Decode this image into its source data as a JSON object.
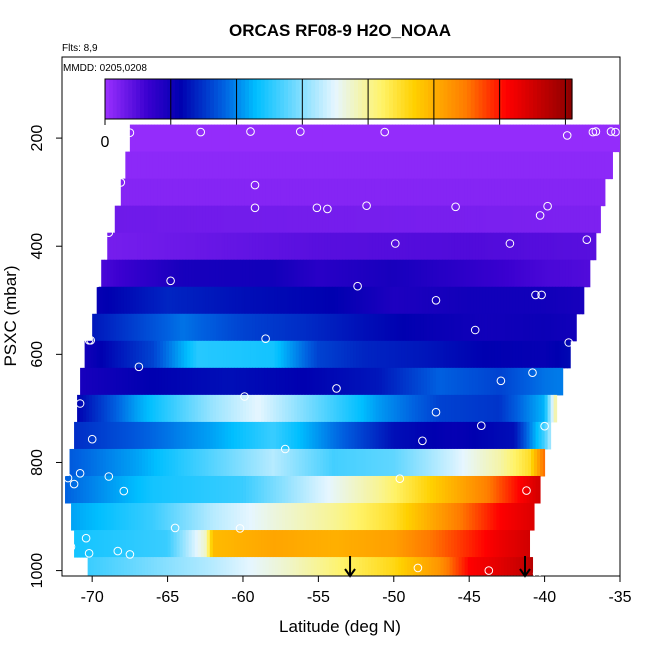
{
  "chart_data": {
    "type": "heatmap",
    "title": "ORCAS RF08-9 H2O_NOAA",
    "flights_label": "Flts: 8,9",
    "dates_label": "MMDD: 0205,0208",
    "xlabel": "Latitude (deg N)",
    "ylabel": "PSXC (mbar)",
    "xlim": [
      -72,
      -35
    ],
    "ylim": [
      1010,
      50
    ],
    "y_reversed": true,
    "x_ticks": [
      -70,
      -65,
      -60,
      -55,
      -50,
      -45,
      -40,
      -35
    ],
    "y_ticks": [
      200,
      400,
      600,
      800,
      1000
    ],
    "colorbar": {
      "range": [
        0,
        14200
      ],
      "ticks": [
        0,
        2000,
        4000,
        6000,
        8000,
        10000,
        12000,
        14000
      ],
      "stops": [
        {
          "v": 0,
          "c": "#9B30FF"
        },
        {
          "v": 1300,
          "c": "#3A00D0"
        },
        {
          "v": 2300,
          "c": "#0000B0"
        },
        {
          "v": 3600,
          "c": "#0060E0"
        },
        {
          "v": 4600,
          "c": "#00BFFF"
        },
        {
          "v": 7000,
          "c": "#E6F6FF"
        },
        {
          "v": 8400,
          "c": "#FFF36A"
        },
        {
          "v": 9400,
          "c": "#FFD000"
        },
        {
          "v": 11000,
          "c": "#FF7A00"
        },
        {
          "v": 12200,
          "c": "#FF0000"
        },
        {
          "v": 14200,
          "c": "#8B0000"
        }
      ]
    },
    "layers": [
      {
        "p_top": 175,
        "p_bot": 225,
        "lat_min": -67.5,
        "lat_max": -35.0,
        "profile": [
          [
            -67.5,
            100
          ],
          [
            -35,
            100
          ]
        ]
      },
      {
        "p_top": 225,
        "p_bot": 275,
        "lat_min": -67.8,
        "lat_max": -35.5,
        "profile": [
          [
            -67.8,
            200
          ],
          [
            -35.5,
            200
          ]
        ]
      },
      {
        "p_top": 275,
        "p_bot": 325,
        "lat_min": -68.1,
        "lat_max": -36.0,
        "profile": [
          [
            -68.1,
            300
          ],
          [
            -36,
            300
          ]
        ]
      },
      {
        "p_top": 325,
        "p_bot": 375,
        "lat_min": -68.5,
        "lat_max": -36.3,
        "profile": [
          [
            -68.5,
            600
          ],
          [
            -36.3,
            400
          ]
        ]
      },
      {
        "p_top": 375,
        "p_bot": 425,
        "lat_min": -69.0,
        "lat_max": -36.6,
        "profile": [
          [
            -69,
            500
          ],
          [
            -62,
            700
          ],
          [
            -55,
            900
          ],
          [
            -45,
            1000
          ],
          [
            -36.6,
            900
          ]
        ]
      },
      {
        "p_top": 425,
        "p_bot": 475,
        "lat_min": -69.4,
        "lat_max": -37.0,
        "profile": [
          [
            -69.4,
            1100
          ],
          [
            -64,
            1900
          ],
          [
            -58,
            2000
          ],
          [
            -55,
            1600
          ],
          [
            -50,
            1900
          ],
          [
            -45,
            1500
          ],
          [
            -40,
            1100
          ],
          [
            -37,
            1000
          ]
        ]
      },
      {
        "p_top": 475,
        "p_bot": 525,
        "lat_min": -69.7,
        "lat_max": -37.4,
        "profile": [
          [
            -69.7,
            2200
          ],
          [
            -65,
            2800
          ],
          [
            -60,
            2500
          ],
          [
            -54,
            2300
          ],
          [
            -50,
            1800
          ],
          [
            -45,
            2000
          ],
          [
            -40,
            2000
          ],
          [
            -37.4,
            1900
          ]
        ]
      },
      {
        "p_top": 525,
        "p_bot": 575,
        "lat_min": -70.0,
        "lat_max": -37.9,
        "profile": [
          [
            -70,
            2600
          ],
          [
            -64,
            3800
          ],
          [
            -60,
            3200
          ],
          [
            -56,
            2900
          ],
          [
            -52,
            2500
          ],
          [
            -48,
            2200
          ],
          [
            -44,
            2000
          ],
          [
            -40,
            2100
          ],
          [
            -37.9,
            2000
          ]
        ]
      },
      {
        "p_top": 575,
        "p_bot": 625,
        "lat_min": -70.5,
        "lat_max": -38.3,
        "profile": [
          [
            -70.5,
            2000
          ],
          [
            -66,
            3200
          ],
          [
            -63,
            5000
          ],
          [
            -58,
            4800
          ],
          [
            -55,
            3200
          ],
          [
            -52,
            2800
          ],
          [
            -48,
            2600
          ],
          [
            -44,
            2300
          ],
          [
            -40,
            2200
          ],
          [
            -38.3,
            2400
          ]
        ]
      },
      {
        "p_top": 625,
        "p_bot": 675,
        "lat_min": -70.8,
        "lat_max": -38.8,
        "profile": [
          [
            -70.8,
            1900
          ],
          [
            -66,
            2300
          ],
          [
            -61,
            2500
          ],
          [
            -56,
            2300
          ],
          [
            -51,
            2600
          ],
          [
            -47,
            3600
          ],
          [
            -43,
            3200
          ],
          [
            -40,
            3800
          ],
          [
            -38.8,
            3900
          ]
        ]
      },
      {
        "p_top": 675,
        "p_bot": 725,
        "lat_min": -71.0,
        "lat_max": -39.2,
        "profile": [
          [
            -71,
            2300
          ],
          [
            -67,
            4300
          ],
          [
            -62,
            6200
          ],
          [
            -59,
            7000
          ],
          [
            -55,
            5600
          ],
          [
            -51,
            4200
          ],
          [
            -47,
            3200
          ],
          [
            -43,
            3000
          ],
          [
            -40,
            4500
          ],
          [
            -39.2,
            8200
          ]
        ]
      },
      {
        "p_top": 725,
        "p_bot": 775,
        "lat_min": -71.2,
        "lat_max": -39.6,
        "profile": [
          [
            -71.2,
            2900
          ],
          [
            -67,
            3500
          ],
          [
            -62,
            4300
          ],
          [
            -58,
            5200
          ],
          [
            -54,
            3800
          ],
          [
            -50,
            2500
          ],
          [
            -46,
            2200
          ],
          [
            -42,
            2500
          ],
          [
            -40,
            5300
          ],
          [
            -39.6,
            6500
          ]
        ]
      },
      {
        "p_top": 775,
        "p_bot": 825,
        "lat_min": -71.5,
        "lat_max": -40.0,
        "profile": [
          [
            -71.5,
            3500
          ],
          [
            -67,
            4300
          ],
          [
            -62,
            5500
          ],
          [
            -58,
            6500
          ],
          [
            -54,
            5300
          ],
          [
            -50,
            5600
          ],
          [
            -46,
            6800
          ],
          [
            -43,
            7800
          ],
          [
            -41,
            9000
          ],
          [
            -40,
            11200
          ]
        ]
      },
      {
        "p_top": 825,
        "p_bot": 875,
        "lat_min": -71.8,
        "lat_max": -40.3,
        "profile": [
          [
            -71.8,
            3600
          ],
          [
            -66,
            4800
          ],
          [
            -60,
            5200
          ],
          [
            -55,
            6800
          ],
          [
            -51,
            8000
          ],
          [
            -47,
            9600
          ],
          [
            -44,
            10800
          ],
          [
            -42,
            12000
          ],
          [
            -40.3,
            13000
          ]
        ]
      },
      {
        "p_top": 875,
        "p_bot": 925,
        "lat_min": -71.4,
        "lat_max": -40.7,
        "profile": [
          [
            -71.4,
            4300
          ],
          [
            -66,
            5200
          ],
          [
            -62,
            6500
          ],
          [
            -58,
            7300
          ],
          [
            -54,
            8000
          ],
          [
            -50,
            9000
          ],
          [
            -46,
            10800
          ],
          [
            -43,
            12200
          ],
          [
            -40.7,
            12800
          ]
        ]
      },
      {
        "p_top": 925,
        "p_bot": 975,
        "lat_min": -71.2,
        "lat_max": -41.0,
        "profile": [
          [
            -71.2,
            4800
          ],
          [
            -65,
            5200
          ],
          [
            -62.5,
            7500
          ],
          [
            -62,
            9800
          ],
          [
            -58,
            10200
          ],
          [
            -54,
            10000
          ],
          [
            -50,
            10300
          ],
          [
            -46,
            11500
          ],
          [
            -43,
            12500
          ],
          [
            -41,
            13000
          ]
        ]
      },
      {
        "p_top": 975,
        "p_bot": 1008,
        "lat_min": -70.3,
        "lat_max": -40.8,
        "profile": [
          [
            -70.3,
            5200
          ],
          [
            -62,
            6500
          ],
          [
            -57,
            7500
          ],
          [
            -53,
            8500
          ],
          [
            -50,
            9200
          ],
          [
            -47,
            10500
          ],
          [
            -45,
            12200
          ],
          [
            -43,
            12700
          ],
          [
            -41,
            13300
          ],
          [
            -40.8,
            13500
          ]
        ]
      }
    ],
    "markers": [
      [
        -67.5,
        190
      ],
      [
        -62.8,
        189
      ],
      [
        -59.5,
        188
      ],
      [
        -56.2,
        188
      ],
      [
        -50.6,
        189
      ],
      [
        -38.5,
        195
      ],
      [
        -36.8,
        189
      ],
      [
        -36.6,
        188
      ],
      [
        -35.6,
        188
      ],
      [
        -35.3,
        189
      ],
      [
        -59.2,
        287
      ],
      [
        -68.1,
        282
      ],
      [
        -59.2,
        329
      ],
      [
        -55.1,
        329
      ],
      [
        -54.4,
        331
      ],
      [
        -51.8,
        325
      ],
      [
        -45.9,
        327
      ],
      [
        -39.8,
        326
      ],
      [
        -40.3,
        343
      ],
      [
        -68.9,
        375
      ],
      [
        -49.9,
        395
      ],
      [
        -42.3,
        395
      ],
      [
        -37.2,
        388
      ],
      [
        -64.8,
        464
      ],
      [
        -52.4,
        474
      ],
      [
        -47.2,
        500
      ],
      [
        -40.6,
        490
      ],
      [
        -40.2,
        490
      ],
      [
        -69.7,
        468
      ],
      [
        -70.2,
        574
      ],
      [
        -70.1,
        574
      ],
      [
        -58.5,
        571
      ],
      [
        -44.6,
        555
      ],
      [
        -38.4,
        578
      ],
      [
        -66.9,
        623
      ],
      [
        -53.8,
        663
      ],
      [
        -42.9,
        649
      ],
      [
        -40.8,
        634
      ],
      [
        -59.9,
        678
      ],
      [
        -47.2,
        707
      ],
      [
        -44.2,
        732
      ],
      [
        -40.0,
        733
      ],
      [
        -70.8,
        691
      ],
      [
        -70.0,
        757
      ],
      [
        -57.2,
        775
      ],
      [
        -48.1,
        760
      ],
      [
        -71.6,
        829
      ],
      [
        -70.8,
        820
      ],
      [
        -71.2,
        840
      ],
      [
        -68.9,
        826
      ],
      [
        -67.9,
        853
      ],
      [
        -49.6,
        830
      ],
      [
        -41.2,
        852
      ],
      [
        -64.5,
        921
      ],
      [
        -60.2,
        922
      ],
      [
        -70.4,
        940
      ],
      [
        -71.4,
        956
      ],
      [
        -70.2,
        968
      ],
      [
        -68.3,
        964
      ],
      [
        -67.5,
        970
      ],
      [
        -48.4,
        995
      ],
      [
        -43.7,
        1000
      ],
      [
        -40.5,
        1005
      ]
    ],
    "arrows_lat": [
      -52.9,
      -41.3
    ]
  }
}
